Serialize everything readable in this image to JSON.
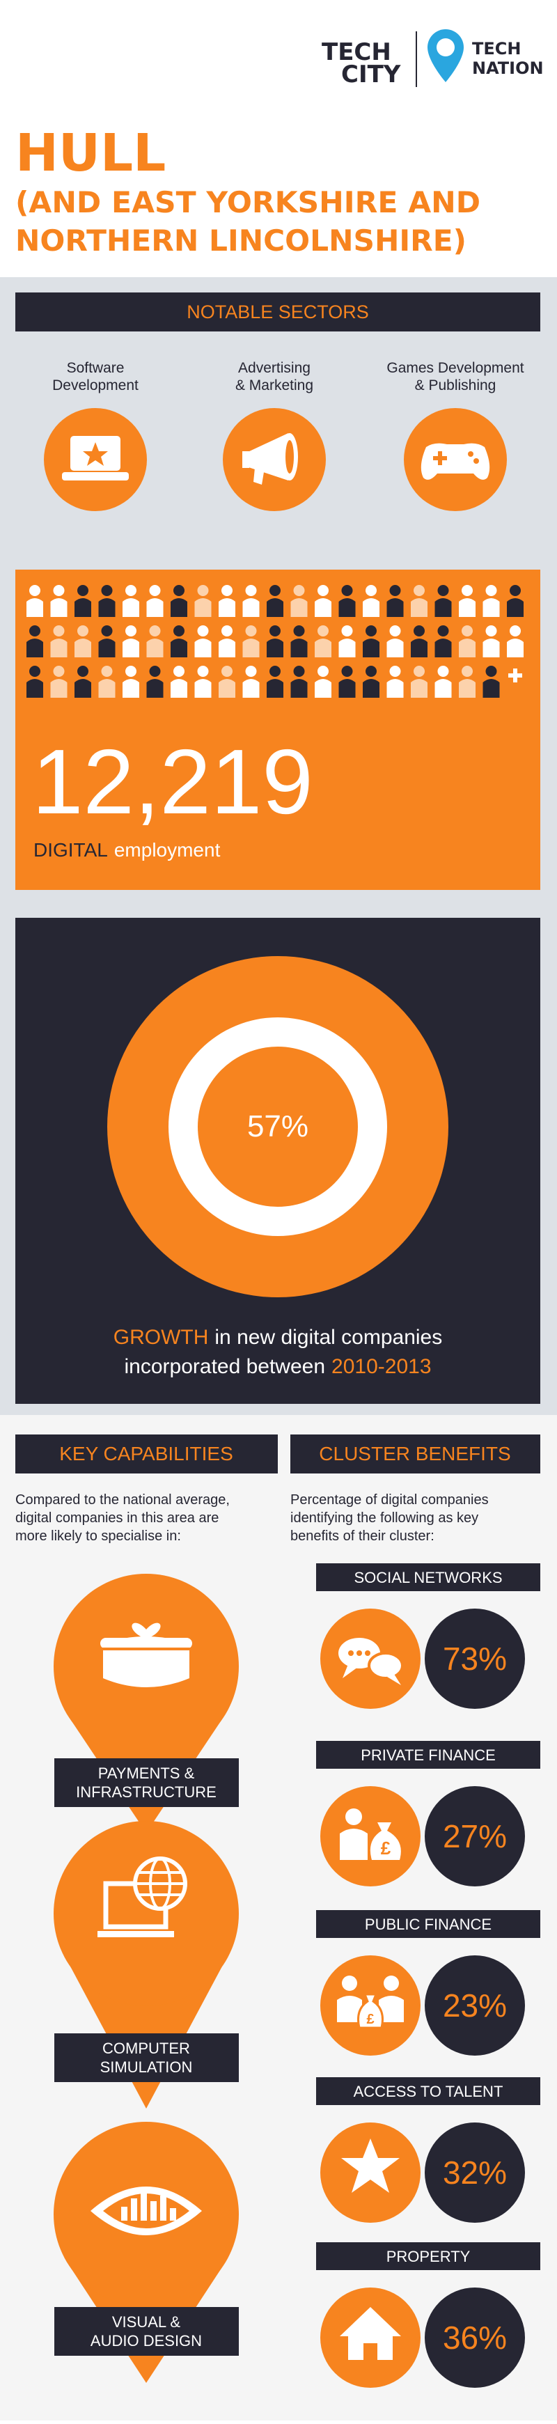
{
  "header": {
    "logo_left": [
      "TECH",
      "CITY"
    ],
    "logo_right": [
      "TECH",
      "NATION"
    ],
    "title": [
      "HULL",
      "(AND EAST YORKSHIRE AND",
      "NORTHERN LINCOLNSHIRE)"
    ]
  },
  "notable_sectors": {
    "title": "NOTABLE SECTORS",
    "items": [
      [
        "Software",
        "Development"
      ],
      [
        "Advertising",
        "& Marketing"
      ],
      [
        "Games Development",
        "& Publishing"
      ]
    ]
  },
  "employment": {
    "value": "12,219",
    "highlight": "DIGITAL",
    "label": "employment"
  },
  "growth": {
    "value": "57%",
    "highlight": "GROWTH",
    "text": [
      "in new digital companies",
      "incorporated between"
    ],
    "period": "2010-2013"
  },
  "key_capabilities": {
    "title": "KEY CAPABILITIES",
    "intro": [
      "Compared to the national average,",
      "digital companies in this area are",
      "more likely to specialise in:"
    ],
    "items": [
      [
        "PAYMENTS &",
        "INFRASTRUCTURE"
      ],
      [
        "COMPUTER",
        "SIMULATION"
      ],
      [
        "VISUAL &",
        "AUDIO DESIGN"
      ]
    ]
  },
  "cluster_benefits": {
    "title": "CLUSTER BENEFITS",
    "intro": [
      "Percentage of digital companies",
      "identifying the following as key",
      "benefits of their cluster:"
    ],
    "items": [
      {
        "name": "SOCIAL NETWORKS",
        "value": "73%"
      },
      {
        "name": "PRIVATE FINANCE",
        "value": "27%"
      },
      {
        "name": "PUBLIC FINANCE",
        "value": "23%"
      },
      {
        "name": "ACCESS TO TALENT",
        "value": "32%"
      },
      {
        "name": "PROPERTY",
        "value": "36%"
      }
    ]
  }
}
